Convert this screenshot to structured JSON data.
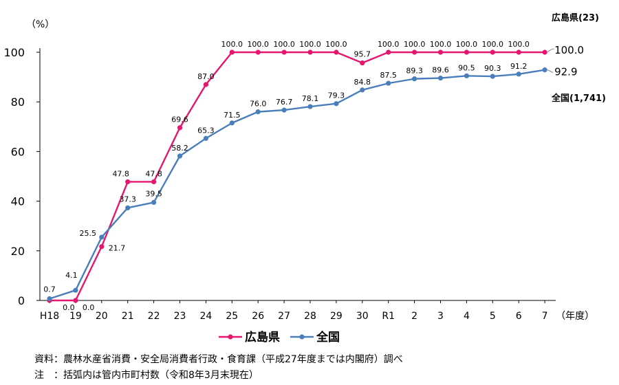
{
  "chart_data": {
    "type": "line",
    "unit_label": "（%）",
    "xlabel_suffix": "（年度）",
    "categories": [
      "H18",
      "19",
      "20",
      "21",
      "22",
      "23",
      "24",
      "25",
      "26",
      "27",
      "28",
      "29",
      "30",
      "R1",
      "2",
      "3",
      "4",
      "5",
      "6",
      "7"
    ],
    "ylim": [
      0,
      100
    ],
    "yticks": [
      0,
      20,
      40,
      60,
      80,
      100
    ],
    "grid": false,
    "legend_position": "bottom",
    "series": [
      {
        "name": "広島県",
        "color": "#E5166D",
        "values": [
          0.0,
          0.0,
          21.7,
          47.8,
          47.8,
          69.6,
          87.0,
          100.0,
          100.0,
          100.0,
          100.0,
          100.0,
          95.7,
          100.0,
          100.0,
          100.0,
          100.0,
          100.0,
          100.0,
          100.0
        ],
        "labels": [
          "",
          "0.0",
          "21.7",
          "47.8",
          "47.8",
          "69.6",
          "87.0",
          "100.0",
          "100.0",
          "100.0",
          "100.0",
          "100.0",
          "95.7",
          "100.0",
          "100.0",
          "100.0",
          "100.0",
          "100.0",
          "100.0",
          "100.0"
        ],
        "end_value_label": "100.0",
        "end_name_label": "広島県(23)"
      },
      {
        "name": "全国",
        "color": "#4A7EBB",
        "values": [
          0.7,
          4.1,
          25.5,
          37.3,
          39.5,
          58.2,
          65.3,
          71.5,
          76.0,
          76.7,
          78.1,
          79.3,
          84.8,
          87.5,
          89.3,
          89.6,
          90.5,
          90.3,
          91.2,
          92.9
        ],
        "labels": [
          "0.7",
          "4.1",
          "25.5",
          "37.3",
          "39.5",
          "58.2",
          "65.3",
          "71.5",
          "76.0",
          "76.7",
          "78.1",
          "79.3",
          "84.8",
          "87.5",
          "89.3",
          "89.6",
          "90.5",
          "90.3",
          "91.2",
          "92.9"
        ],
        "end_value_label": "92.9",
        "end_name_label": "全国(1,741)"
      }
    ],
    "extra_labels": {
      "hiroshima_first_zero": "0.0"
    }
  },
  "notes": {
    "source": "資料：農林水産省消費・安全局消費者行政・食育課（平成27年度までは内閣府）調べ",
    "note": "注　：括弧内は管内市町村数（令和8年3月末現在）"
  }
}
